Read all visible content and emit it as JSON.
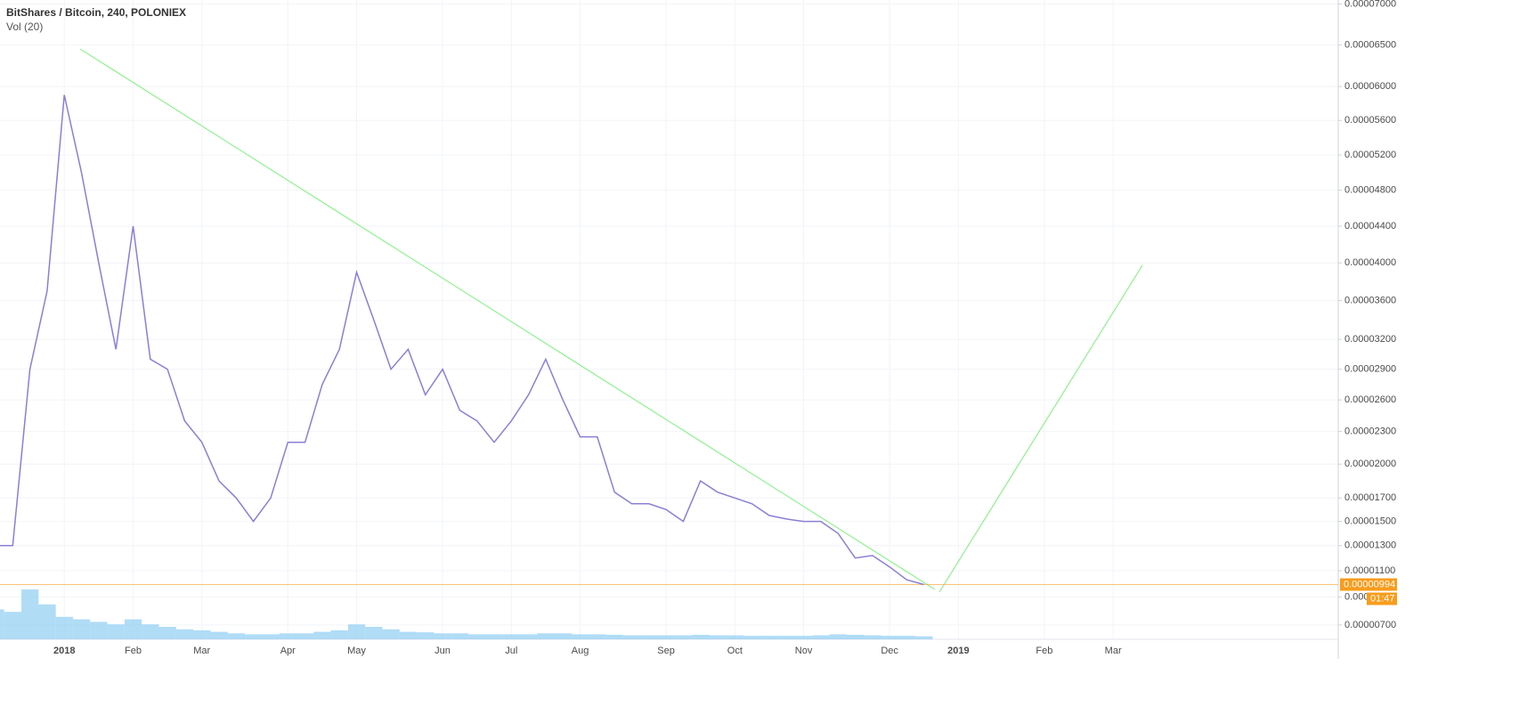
{
  "chart_data": {
    "type": "line",
    "categories": [
      null,
      null,
      null,
      null,
      "2018",
      null,
      null,
      null,
      "Feb",
      null,
      null,
      null,
      "Mar",
      null,
      null,
      null,
      null,
      "Apr",
      null,
      null,
      null,
      "May",
      null,
      null,
      null,
      null,
      "Jun",
      null,
      null,
      null,
      "Jul",
      null,
      null,
      null,
      "Aug",
      null,
      null,
      null,
      null,
      "Sep",
      null,
      null,
      null,
      "Oct",
      null,
      null,
      null,
      "Nov",
      null,
      null,
      null,
      null,
      "Dec",
      null,
      null,
      null,
      "2019",
      null,
      null,
      null,
      null,
      "Feb",
      null,
      null,
      null,
      "Mar",
      null,
      null,
      null,
      null,
      null,
      null,
      null,
      null,
      null,
      null,
      null,
      null
    ],
    "series": [
      {
        "name": "BitShares / Bitcoin, 240, POLONIEX",
        "color": "#8a7fd6",
        "values": [
          1.3e-05,
          1.3e-05,
          2.9e-05,
          3.7e-05,
          5.9e-05,
          5e-05,
          4e-05,
          3.1e-05,
          4.4e-05,
          3e-05,
          2.9e-05,
          2.4e-05,
          2.2e-05,
          1.85e-05,
          1.7e-05,
          1.5e-05,
          1.7e-05,
          2.2e-05,
          2.2e-05,
          2.75e-05,
          3.1e-05,
          3.9e-05,
          3.4e-05,
          2.9e-05,
          3.1e-05,
          2.65e-05,
          2.9e-05,
          2.5e-05,
          2.4e-05,
          2.2e-05,
          2.4e-05,
          2.65e-05,
          3e-05,
          2.6e-05,
          2.25e-05,
          2.25e-05,
          1.75e-05,
          1.65e-05,
          1.65e-05,
          1.6e-05,
          1.5e-05,
          1.85e-05,
          1.75e-05,
          1.7e-05,
          1.65e-05,
          1.55e-05,
          1.52e-05,
          1.5e-05,
          1.5e-05,
          1.4e-05,
          1.2e-05,
          1.22e-05,
          1.13e-05,
          1.03e-05,
          9.94e-06,
          null,
          null,
          null,
          null,
          null,
          null,
          null,
          null,
          null,
          null,
          null,
          null,
          null,
          null,
          null,
          null,
          null,
          null,
          null,
          null,
          null,
          null,
          null
        ]
      },
      {
        "name": "Vol (20)",
        "color": "#8fcdf2",
        "values": [
          60,
          55,
          100,
          70,
          45,
          40,
          35,
          30,
          40,
          30,
          25,
          20,
          18,
          15,
          12,
          10,
          10,
          12,
          12,
          15,
          18,
          30,
          25,
          20,
          15,
          14,
          12,
          12,
          10,
          10,
          10,
          10,
          12,
          12,
          10,
          10,
          9,
          8,
          8,
          8,
          8,
          9,
          8,
          8,
          7,
          7,
          7,
          7,
          8,
          10,
          9,
          8,
          7,
          7,
          6,
          null,
          null,
          null,
          null,
          null,
          null,
          null,
          null,
          null,
          null,
          null,
          null,
          null,
          null,
          null,
          null,
          null,
          null,
          null,
          null,
          null,
          null,
          null
        ]
      }
    ],
    "ylim": [
      6.02e-06,
      7.05e-05
    ],
    "yticks": [
      {
        "value": 7e-05,
        "label": "0.00007000"
      },
      {
        "value": 6.5e-05,
        "label": "0.00006500"
      },
      {
        "value": 6e-05,
        "label": "0.00006000"
      },
      {
        "value": 5.6e-05,
        "label": "0.00005600"
      },
      {
        "value": 5.2e-05,
        "label": "0.00005200"
      },
      {
        "value": 4.8e-05,
        "label": "0.00004800"
      },
      {
        "value": 4.4e-05,
        "label": "0.00004400"
      },
      {
        "value": 4e-05,
        "label": "0.00004000"
      },
      {
        "value": 3.6e-05,
        "label": "0.00003600"
      },
      {
        "value": 3.2e-05,
        "label": "0.00003200"
      },
      {
        "value": 2.9e-05,
        "label": "0.00002900"
      },
      {
        "value": 2.6e-05,
        "label": "0.00002600"
      },
      {
        "value": 2.3e-05,
        "label": "0.00002300"
      },
      {
        "value": 2e-05,
        "label": "0.00002000"
      },
      {
        "value": 1.7e-05,
        "label": "0.00001700"
      },
      {
        "value": 1.5e-05,
        "label": "0.00001500"
      },
      {
        "value": 1.3e-05,
        "label": "0.00001300"
      },
      {
        "value": 1.1e-05,
        "label": "0.00001100"
      },
      {
        "value": 9e-06,
        "label": "0.000"
      },
      {
        "value": 7e-06,
        "label": "0.00000700"
      }
    ],
    "last_price": {
      "value": 9.94e-06,
      "label": "0.00000994",
      "color": "#f89c1c"
    },
    "countdown": "01:47",
    "grid": true
  }
}
